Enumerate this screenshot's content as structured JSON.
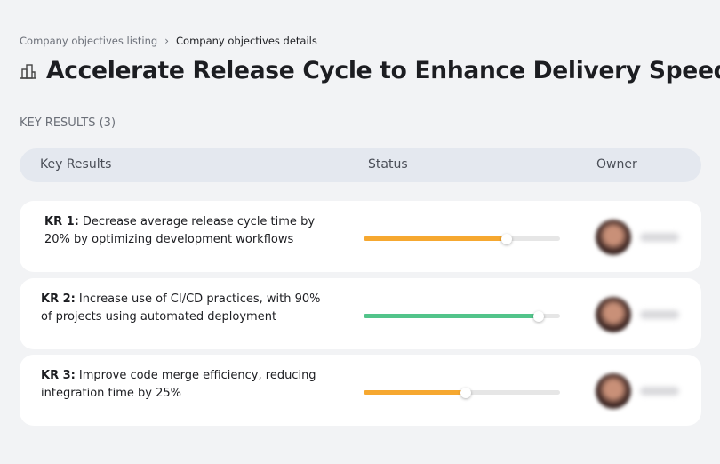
{
  "breadcrumb": {
    "parent": "Company objectives listing",
    "current": "Company objectives details"
  },
  "header": {
    "title": "Accelerate Release Cycle to Enhance Delivery Speed"
  },
  "section_label": "KEY RESULTS (3)",
  "table": {
    "columns": [
      "Key Results",
      "Status",
      "Owner"
    ],
    "rows": [
      {
        "label": "KR 1:",
        "text": "Decrease average release cycle time by 20% by optimizing development workflows",
        "progress": 73,
        "color": "#f6a830"
      },
      {
        "label": "KR 2:",
        "text": "Increase use of CI/CD practices, with 90% of projects using automated deployment",
        "progress": 89,
        "color": "#52c48a"
      },
      {
        "label": "KR 3:",
        "text": "Improve code merge efficiency, reducing integration time by 25%",
        "progress": 52,
        "color": "#f6a830"
      }
    ]
  }
}
